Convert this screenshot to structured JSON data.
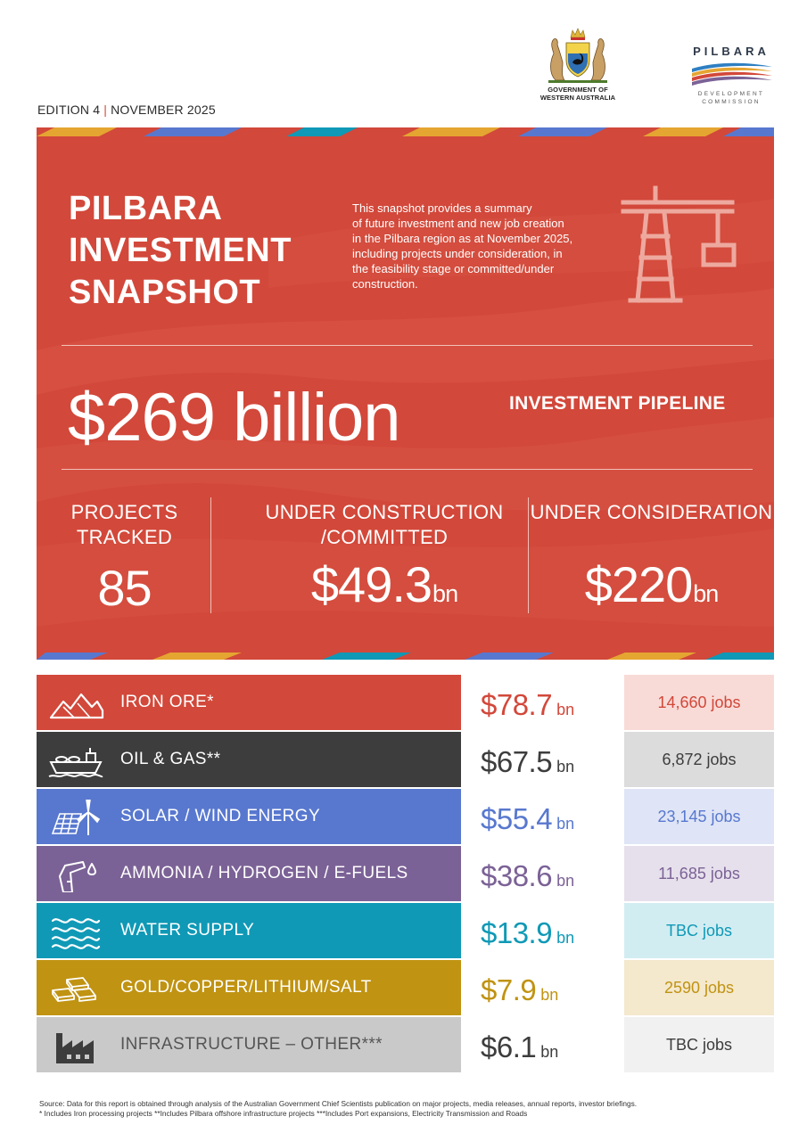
{
  "header": {
    "edition": "EDITION 4",
    "date": "NOVEMBER 2025",
    "gov_logo_line1": "GOVERNMENT OF",
    "gov_logo_line2": "WESTERN AUSTRALIA",
    "pilbara_logo_name": "PILBARA",
    "pilbara_logo_sub1": "DEVELOPMENT",
    "pilbara_logo_sub2": "COMMISSION"
  },
  "hero": {
    "title_line1": "PILBARA",
    "title_line2": "INVESTMENT",
    "title_line3": "SNAPSHOT",
    "intro_line1": "This snapshot provides a summary",
    "intro_line2": "of future investment and new job creation",
    "intro_line3": "in the Pilbara region as at November 2025,",
    "intro_line4": "including projects under consideration, in",
    "intro_line5": "the feasibility stage or committed/under",
    "intro_line6": "construction.",
    "total_value": "$269 billion",
    "pipeline_label": "INVESTMENT PIPELINE",
    "icon": "crane-icon",
    "background_color": "#d2483a"
  },
  "stats": [
    {
      "label_line1": "PROJECTS",
      "label_line2": "TRACKED",
      "value": "85",
      "unit": ""
    },
    {
      "label_line1": "UNDER CONSTRUCTION",
      "label_line2": "/COMMITTED",
      "value": "$49.3",
      "unit": "bn"
    },
    {
      "label_line1": "UNDER CONSIDERATION",
      "label_line2": "",
      "value": "$220",
      "unit": "bn"
    }
  ],
  "categories": [
    {
      "label": "IRON ORE*",
      "amount": "$78.7",
      "unit": "bn",
      "jobs": "14,660 jobs",
      "icon": "mountains-icon",
      "color": "#d2483a",
      "text_color": "#ffffff",
      "amount_color": "#d2483a",
      "jobs_bg": "#f8dbd7",
      "jobs_color": "#d2483a"
    },
    {
      "label": "OIL & GAS**",
      "amount": "$67.5",
      "unit": "bn",
      "jobs": "6,872 jobs",
      "icon": "tanker-ship-icon",
      "color": "#3d3d3d",
      "text_color": "#ffffff",
      "amount_color": "#3d3d3d",
      "jobs_bg": "#dcdcdc",
      "jobs_color": "#3d3d3d"
    },
    {
      "label": "SOLAR / WIND ENERGY",
      "amount": "$55.4",
      "unit": "bn",
      "jobs": "23,145 jobs",
      "icon": "solar-wind-icon",
      "color": "#5878cf",
      "text_color": "#ffffff",
      "amount_color": "#5878cf",
      "jobs_bg": "#dfe5f6",
      "jobs_color": "#5878cf"
    },
    {
      "label": "AMMONIA / HYDROGEN / E-FUELS",
      "amount": "$38.6",
      "unit": "bn",
      "jobs": "11,685 jobs",
      "icon": "fuel-nozzle-icon",
      "color": "#7b6296",
      "text_color": "#ffffff",
      "amount_color": "#7b6296",
      "jobs_bg": "#e6e0ec",
      "jobs_color": "#7b6296"
    },
    {
      "label": "WATER SUPPLY",
      "amount": "$13.9",
      "unit": "bn",
      "jobs": "TBC jobs",
      "icon": "water-waves-icon",
      "color": "#0f99b6",
      "text_color": "#ffffff",
      "amount_color": "#0f99b6",
      "jobs_bg": "#d2edf2",
      "jobs_color": "#0f99b6"
    },
    {
      "label": "GOLD/COPPER/LITHIUM/SALT",
      "amount": "$7.9",
      "unit": "bn",
      "jobs": "2590 jobs",
      "icon": "gold-bars-icon",
      "color": "#c09312",
      "text_color": "#ffffff",
      "amount_color": "#c09312",
      "jobs_bg": "#f4e8cd",
      "jobs_color": "#c09312"
    },
    {
      "label": "INFRASTRUCTURE – OTHER***",
      "amount": "$6.1",
      "unit": "bn",
      "jobs": "TBC jobs",
      "icon": "factory-icon",
      "color": "#c9c9c9",
      "text_color": "#555555",
      "amount_color": "#3d3d3d",
      "jobs_bg": "#f1f1f1",
      "jobs_color": "#3d3d3d"
    }
  ],
  "footer": {
    "line1": "Source: Data for this report is obtained through analysis of the Australian Government Chief Scientists publication on major projects, media releases, annual reports, investor briefings.",
    "line2": "* Includes Iron processing projects **Includes  Pilbara offshore infrastructure projects  ***Includes Port expansions, Electricity Transmission and Roads"
  }
}
